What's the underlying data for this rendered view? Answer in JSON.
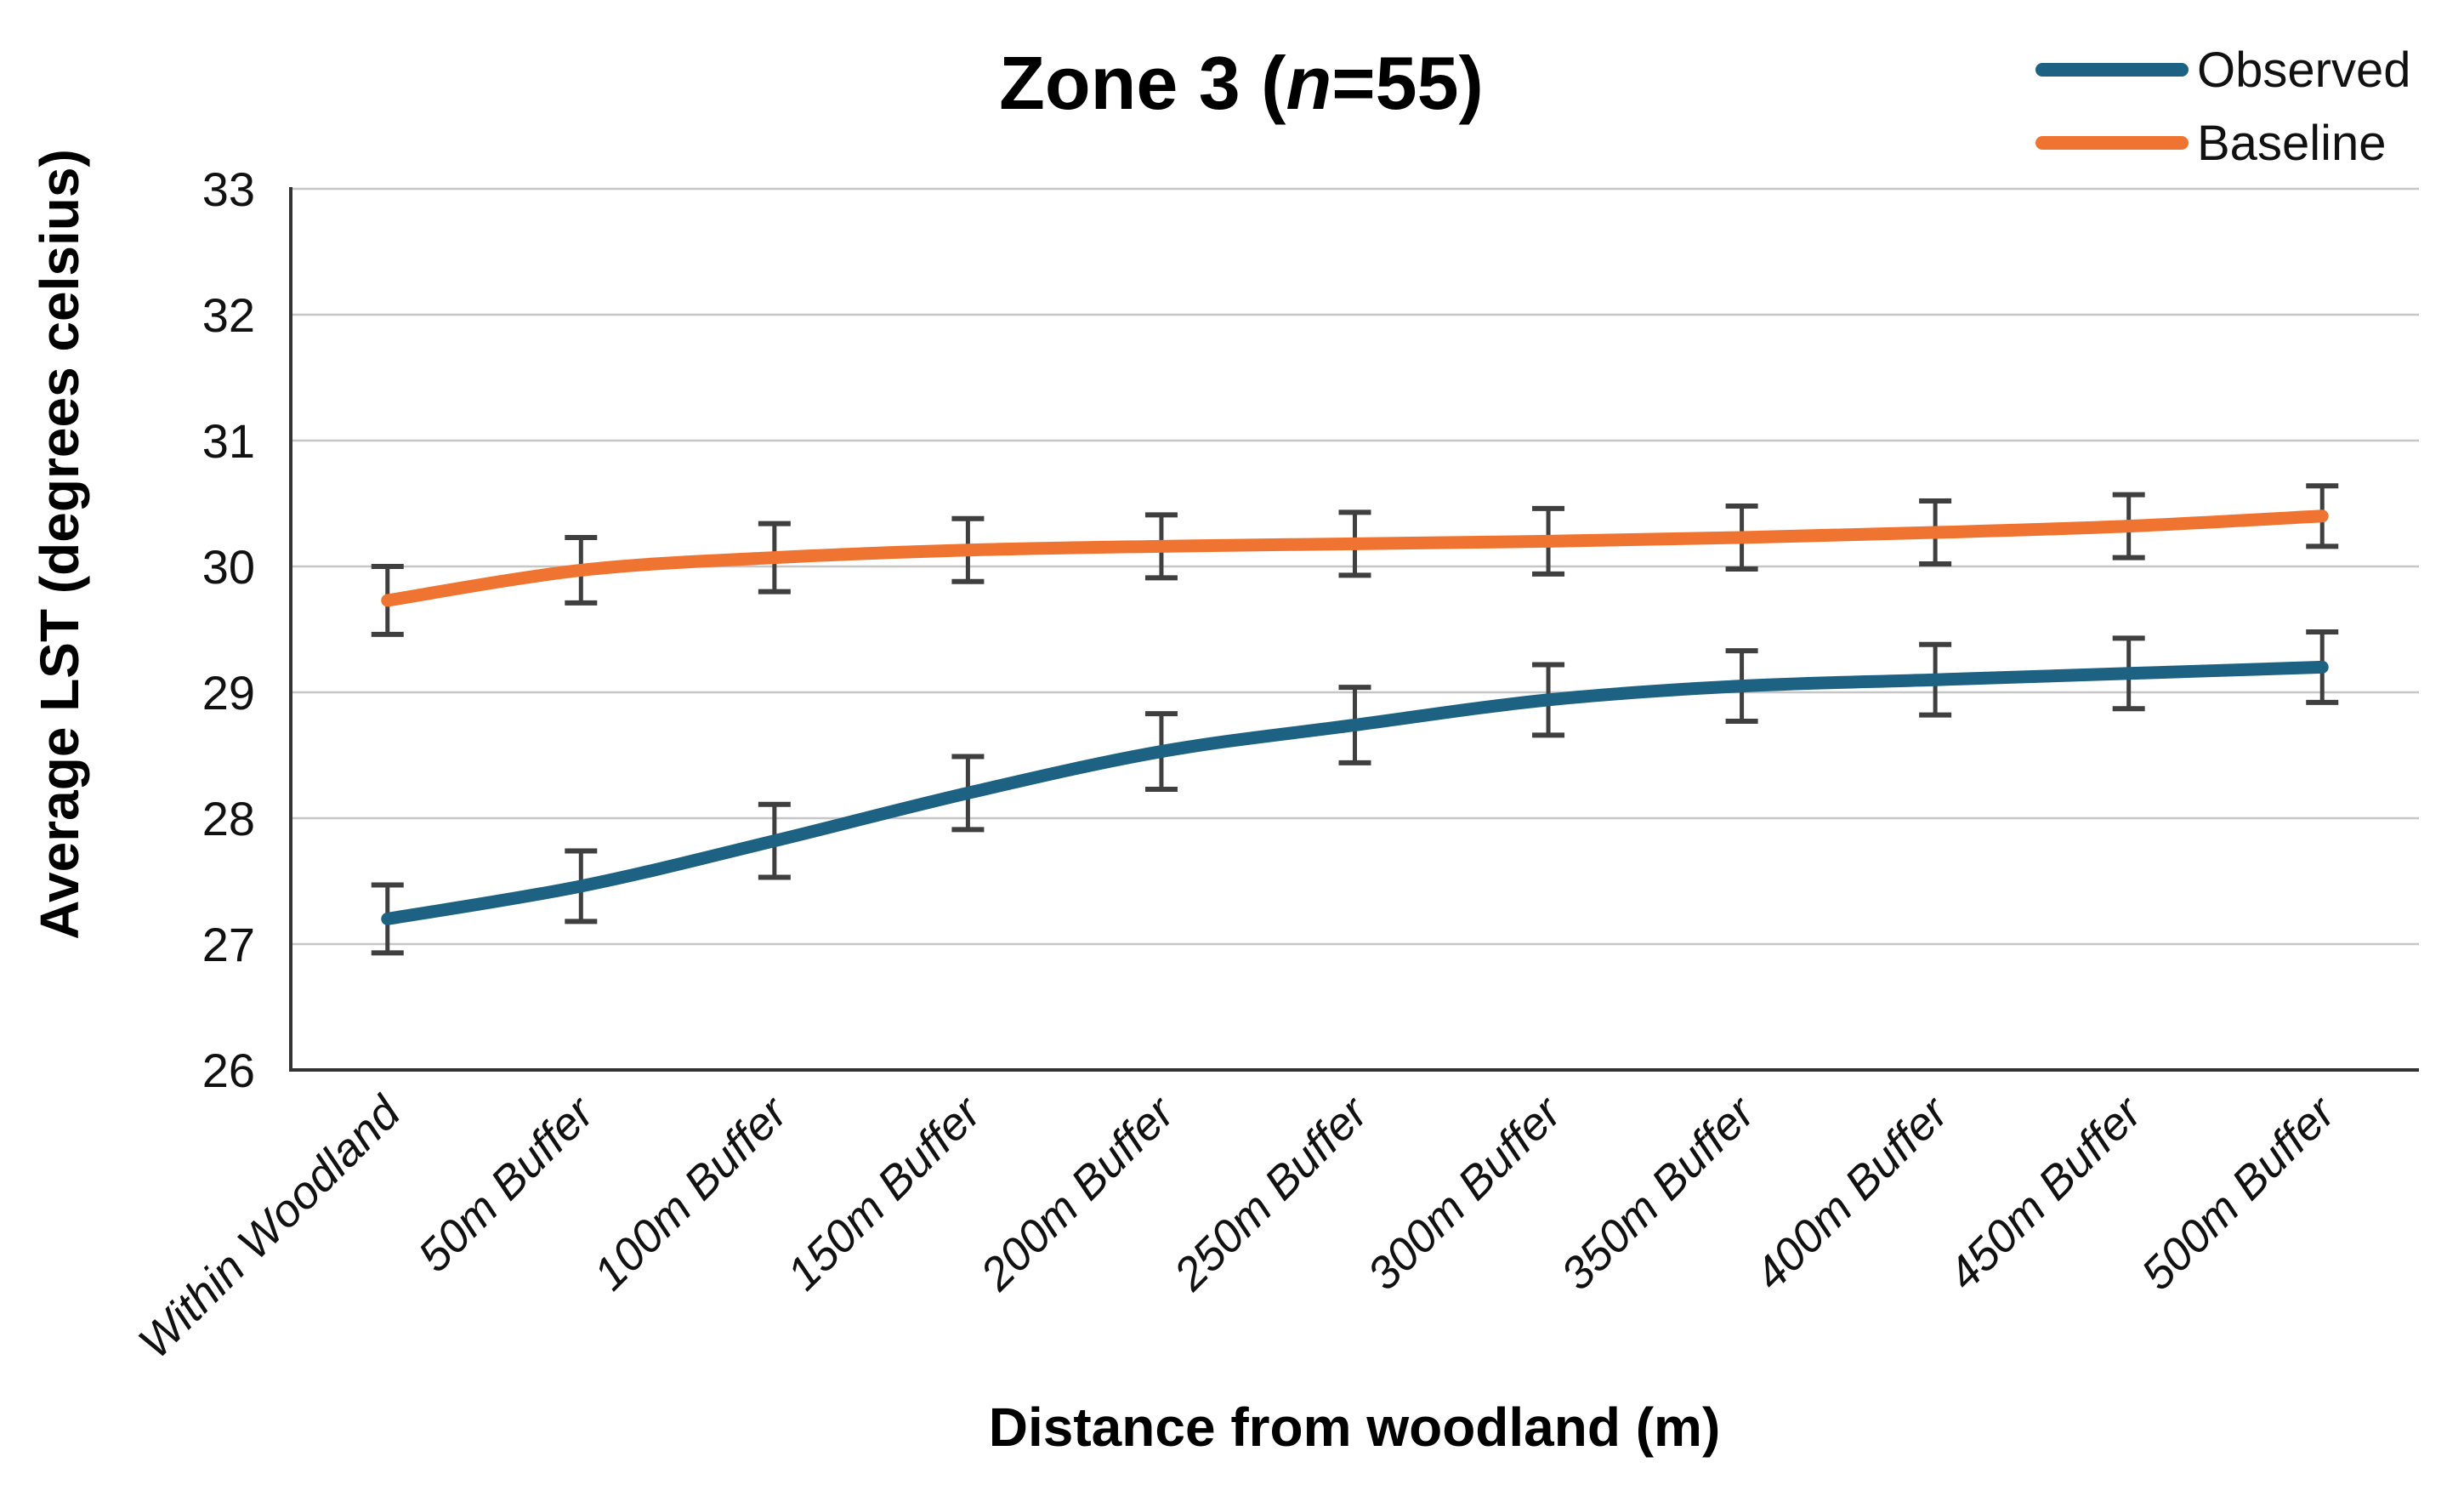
{
  "chart_data": {
    "type": "line",
    "title": "Zone 3 (n=55)",
    "title_parts": {
      "prefix": "Zone 3 (",
      "italic": "n",
      "suffix": "=55)"
    },
    "xlabel": "Distance from woodland (m)",
    "ylabel": "Average LST (degrees celsius)",
    "ylim": [
      26,
      33
    ],
    "yticks": [
      26,
      27,
      28,
      29,
      30,
      31,
      32,
      33
    ],
    "grid": "horizontal",
    "legend_position": "top-right",
    "categories": [
      "Within Woodland",
      "50m Buffer",
      "100m Buffer",
      "150m Buffer",
      "200m Buffer",
      "250m Buffer",
      "300m Buffer",
      "350m Buffer",
      "400m Buffer",
      "450m Buffer",
      "500m Buffer"
    ],
    "series": [
      {
        "name": "Observed",
        "color": "#1D6283",
        "values": [
          27.2,
          27.46,
          27.82,
          28.2,
          28.53,
          28.74,
          28.94,
          29.05,
          29.1,
          29.15,
          29.2
        ],
        "errors": [
          0.27,
          0.28,
          0.29,
          0.29,
          0.3,
          0.3,
          0.28,
          0.28,
          0.28,
          0.28,
          0.28
        ]
      },
      {
        "name": "Baseline",
        "color": "#EF7431",
        "values": [
          29.73,
          29.97,
          30.07,
          30.13,
          30.16,
          30.18,
          30.2,
          30.23,
          30.27,
          30.32,
          30.4
        ],
        "errors": [
          0.27,
          0.26,
          0.27,
          0.25,
          0.25,
          0.25,
          0.26,
          0.25,
          0.25,
          0.25,
          0.24
        ]
      }
    ],
    "error_bar_color": "#3F3F3F",
    "gridline_color": "#C6C6C6",
    "axis_color": "#333333"
  }
}
